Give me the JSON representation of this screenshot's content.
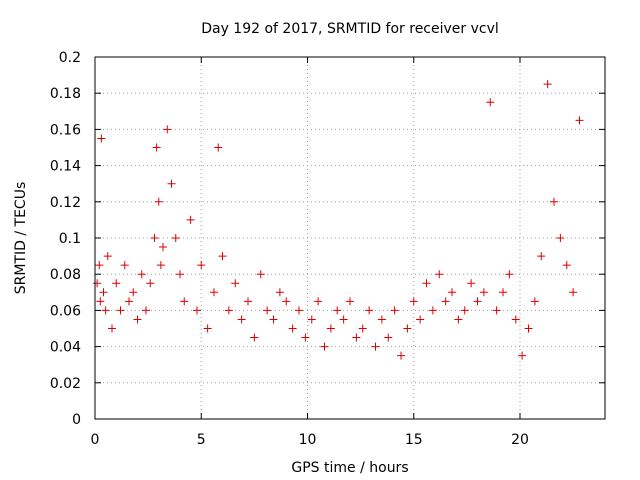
{
  "chart_data": {
    "type": "scatter",
    "title": "Day 192 of 2017, SRMTID for receiver vcvl",
    "xlabel": "GPS time / hours",
    "ylabel": "SRMTID / TECUs",
    "xlim": [
      0,
      24
    ],
    "ylim": [
      0,
      0.2
    ],
    "x_ticks": [
      0,
      5,
      10,
      15,
      20
    ],
    "x_tick_labels": [
      "0",
      "5",
      "10",
      "15",
      "20"
    ],
    "y_ticks": [
      0,
      0.02,
      0.04,
      0.06,
      0.08,
      0.1,
      0.12,
      0.14,
      0.16,
      0.18,
      0.2
    ],
    "y_tick_labels": [
      "0",
      "0.02",
      "0.04",
      "0.06",
      "0.08",
      "0.1",
      "0.12",
      "0.14",
      "0.16",
      "0.18",
      "0.2"
    ],
    "grid": true,
    "marker": "+",
    "series_color": "#dd0000",
    "series": [
      {
        "name": "SRMTID",
        "x": [
          0.1,
          0.2,
          0.25,
          0.3,
          0.4,
          0.5,
          0.6,
          0.8,
          1.0,
          1.2,
          1.4,
          1.6,
          1.8,
          2.0,
          2.2,
          2.4,
          2.6,
          2.8,
          2.9,
          3.0,
          3.1,
          3.2,
          3.4,
          3.6,
          3.8,
          4.0,
          4.2,
          4.5,
          4.8,
          5.0,
          5.3,
          5.6,
          5.8,
          6.0,
          6.3,
          6.6,
          6.9,
          7.2,
          7.5,
          7.8,
          8.1,
          8.4,
          8.7,
          9.0,
          9.3,
          9.6,
          9.9,
          10.2,
          10.5,
          10.8,
          11.1,
          11.4,
          11.7,
          12.0,
          12.3,
          12.6,
          12.9,
          13.2,
          13.5,
          13.8,
          14.1,
          14.4,
          14.7,
          15.0,
          15.3,
          15.6,
          15.9,
          16.2,
          16.5,
          16.8,
          17.1,
          17.4,
          17.7,
          18.0,
          18.3,
          18.6,
          18.9,
          19.2,
          19.5,
          19.8,
          20.1,
          20.4,
          20.7,
          21.0,
          21.3,
          21.6,
          21.9,
          22.2,
          22.5,
          22.8
        ],
        "values": [
          0.075,
          0.085,
          0.065,
          0.155,
          0.07,
          0.06,
          0.09,
          0.05,
          0.075,
          0.06,
          0.085,
          0.065,
          0.07,
          0.055,
          0.08,
          0.06,
          0.075,
          0.1,
          0.15,
          0.12,
          0.085,
          0.095,
          0.16,
          0.13,
          0.1,
          0.08,
          0.065,
          0.11,
          0.06,
          0.085,
          0.05,
          0.07,
          0.15,
          0.09,
          0.06,
          0.075,
          0.055,
          0.065,
          0.045,
          0.08,
          0.06,
          0.055,
          0.07,
          0.065,
          0.05,
          0.06,
          0.045,
          0.055,
          0.065,
          0.04,
          0.05,
          0.06,
          0.055,
          0.065,
          0.045,
          0.05,
          0.06,
          0.04,
          0.055,
          0.045,
          0.06,
          0.035,
          0.05,
          0.065,
          0.055,
          0.075,
          0.06,
          0.08,
          0.065,
          0.07,
          0.055,
          0.06,
          0.075,
          0.065,
          0.07,
          0.175,
          0.06,
          0.07,
          0.08,
          0.055,
          0.035,
          0.05,
          0.065,
          0.09,
          0.185,
          0.12,
          0.1,
          0.085,
          0.07,
          0.165
        ]
      }
    ]
  }
}
